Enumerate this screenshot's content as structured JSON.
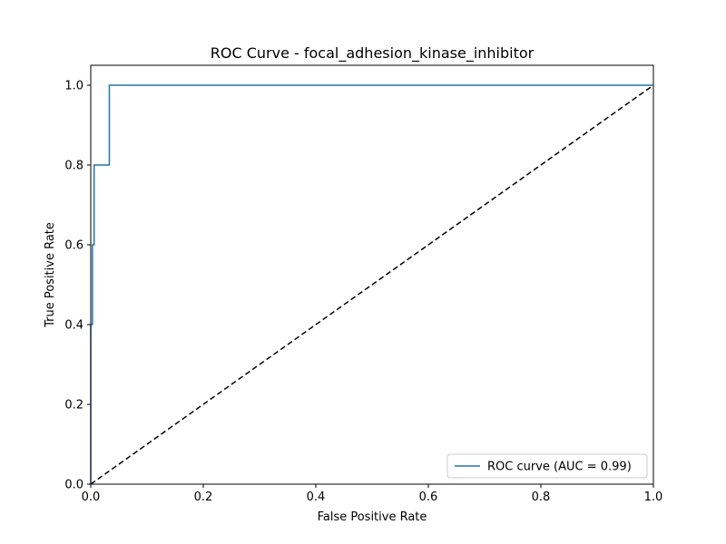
{
  "chart_data": {
    "type": "line",
    "title": "ROC Curve - focal_adhesion_kinase_inhibitor",
    "xlabel": "False Positive Rate",
    "ylabel": "True Positive Rate",
    "xlim": [
      0.0,
      1.0
    ],
    "ylim": [
      0.0,
      1.05
    ],
    "xticks": [
      "0.0",
      "0.2",
      "0.4",
      "0.6",
      "0.8",
      "1.0"
    ],
    "yticks": [
      "0.0",
      "0.2",
      "0.4",
      "0.6",
      "0.8",
      "1.0"
    ],
    "grid": false,
    "legend_position": "lower-right",
    "series": [
      {
        "name": "ROC curve (AUC = 0.99)",
        "color": "#1f77b4",
        "style": "solid",
        "x": [
          0.0,
          0.0,
          0.003,
          0.003,
          0.006,
          0.006,
          0.033,
          0.033,
          1.0
        ],
        "y": [
          0.0,
          0.4,
          0.4,
          0.6,
          0.6,
          0.8,
          0.8,
          1.0,
          1.0
        ]
      },
      {
        "color": "#000000",
        "style": "dashed",
        "x": [
          0.0,
          1.0
        ],
        "y": [
          0.0,
          1.0
        ]
      }
    ]
  }
}
